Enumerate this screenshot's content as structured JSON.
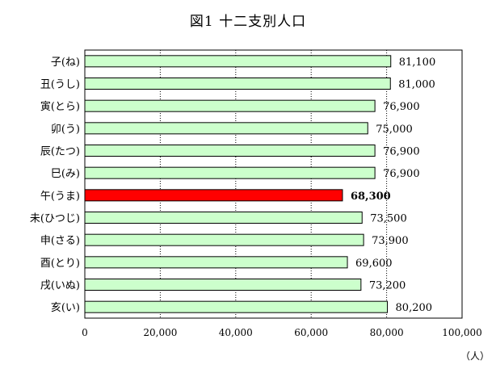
{
  "chart_data": {
    "type": "bar",
    "orientation": "horizontal",
    "title": "図1 十二支別人口",
    "unit": "（人）",
    "categories": [
      "子(ね)",
      "丑(うし)",
      "寅(とら)",
      "卯(う)",
      "辰(たつ)",
      "巳(み)",
      "午(うま)",
      "未(ひつじ)",
      "申(さる)",
      "酉(とり)",
      "戌(いぬ)",
      "亥(い)"
    ],
    "values": [
      81100,
      81000,
      76900,
      75000,
      76900,
      76900,
      68300,
      73500,
      73900,
      69600,
      73200,
      80200
    ],
    "value_labels": [
      "81,100",
      "81,000",
      "76,900",
      "75,000",
      "76,900",
      "76,900",
      "68,300",
      "73,500",
      "73,900",
      "69,600",
      "73,200",
      "80,200"
    ],
    "highlight_index": 6,
    "xlim": [
      0,
      100000
    ],
    "ticks": [
      0,
      20000,
      40000,
      60000,
      80000,
      100000
    ],
    "tick_labels": [
      "0",
      "20,000",
      "40,000",
      "60,000",
      "80,000",
      "100,000"
    ],
    "grid": "vertical-dotted",
    "colors": {
      "bar": "#ccffcc",
      "highlight": "#ff0000",
      "border": "#000000"
    }
  }
}
